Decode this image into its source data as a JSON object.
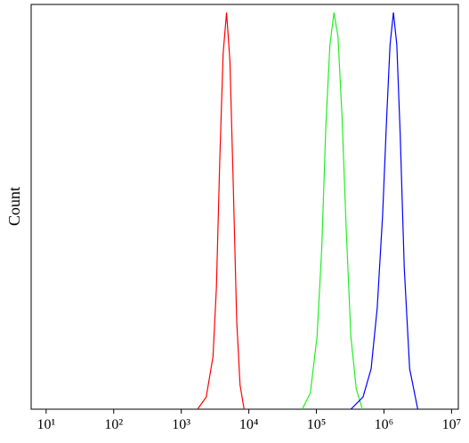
{
  "chart_data": {
    "type": "line",
    "y_label": "Count",
    "log_x": true,
    "xlim": [
      6,
      12600000
    ],
    "ylim": [
      0,
      100
    ],
    "xticks": [
      {
        "value": 10,
        "label": "10¹"
      },
      {
        "value": 100,
        "label": "10²"
      },
      {
        "value": 1000,
        "label": "10³"
      },
      {
        "value": 10000,
        "label": "10⁴"
      },
      {
        "value": 100000,
        "label": "10⁵"
      },
      {
        "value": 1000000,
        "label": "10⁶"
      },
      {
        "value": 10000000,
        "label": "10⁷"
      }
    ],
    "series": [
      {
        "color": "#ff0000",
        "x": [
          1740,
          2340,
          2950,
          3310,
          3720,
          4170,
          4680,
          5250,
          5890,
          6610,
          7410,
          8510
        ],
        "values": [
          0,
          3,
          13,
          30,
          62,
          88,
          98,
          86,
          55,
          22,
          6,
          0
        ]
      },
      {
        "color": "#22ee22",
        "x": [
          61700,
          81300,
          102300,
          120200,
          138000,
          158500,
          182000,
          208900,
          239900,
          275400,
          323600,
          389000,
          478600
        ],
        "values": [
          0,
          4,
          18,
          40,
          70,
          90,
          98,
          92,
          72,
          45,
          18,
          5,
          0
        ]
      },
      {
        "color": "#0000ff",
        "x": [
          323600,
          489800,
          645700,
          794300,
          955000,
          1096000,
          1230000,
          1380000,
          1549000,
          1738000,
          1995000,
          2399000,
          3162000
        ],
        "values": [
          0,
          3,
          10,
          25,
          48,
          72,
          90,
          98,
          90,
          68,
          35,
          10,
          0
        ]
      }
    ]
  }
}
